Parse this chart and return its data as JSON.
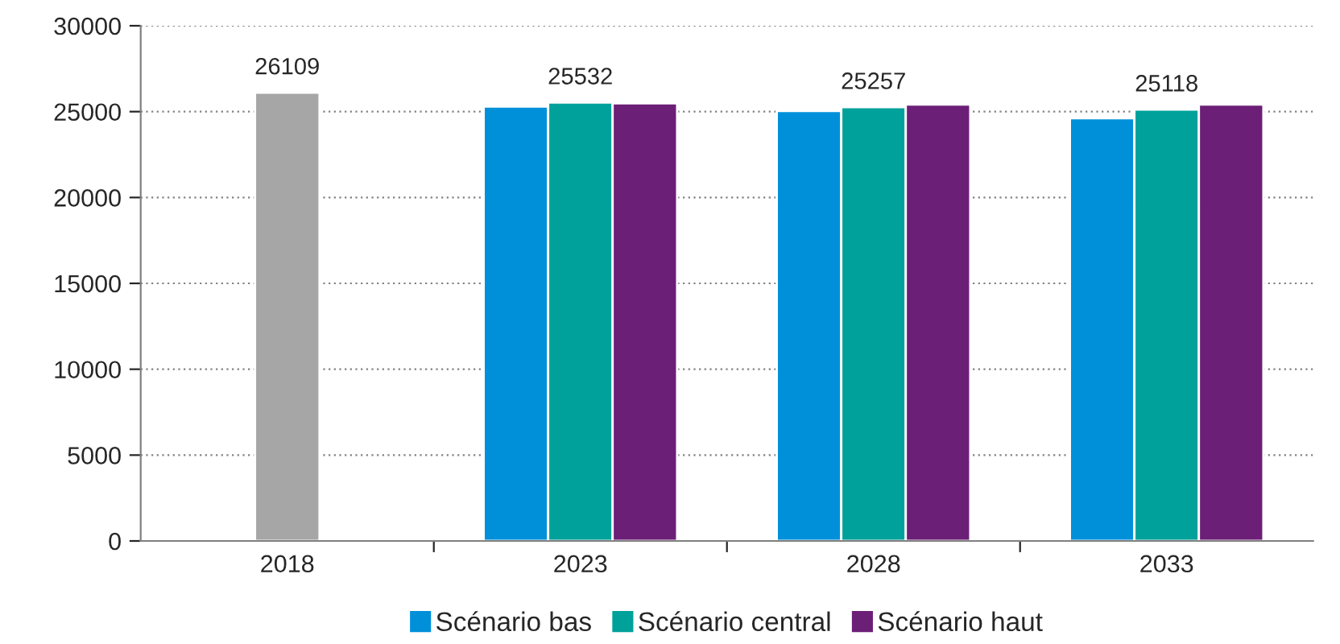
{
  "chart_data": {
    "type": "bar",
    "categories": [
      "2018",
      "2023",
      "2028",
      "2033"
    ],
    "series": [
      {
        "color": "#a6a6a6",
        "values": [
          26109,
          null,
          null,
          null
        ],
        "value_labels": [
          "26109",
          null,
          null,
          null
        ]
      },
      {
        "name": "Scénario bas",
        "color": "#0090da",
        "values": [
          null,
          25300,
          25040,
          24620
        ]
      },
      {
        "name": "Scénario central",
        "color": "#00a19a",
        "values": [
          null,
          25532,
          25257,
          25118
        ],
        "value_labels": [
          null,
          "25532",
          "25257",
          "25118"
        ]
      },
      {
        "name": "Scénario haut",
        "color": "#6c1f77",
        "values": [
          null,
          25480,
          25410,
          25410
        ]
      }
    ],
    "ylim": [
      0,
      30000
    ],
    "yticks": [
      0,
      5000,
      10000,
      15000,
      20000,
      25000,
      30000
    ],
    "grid": "y",
    "legend": "bottom"
  }
}
